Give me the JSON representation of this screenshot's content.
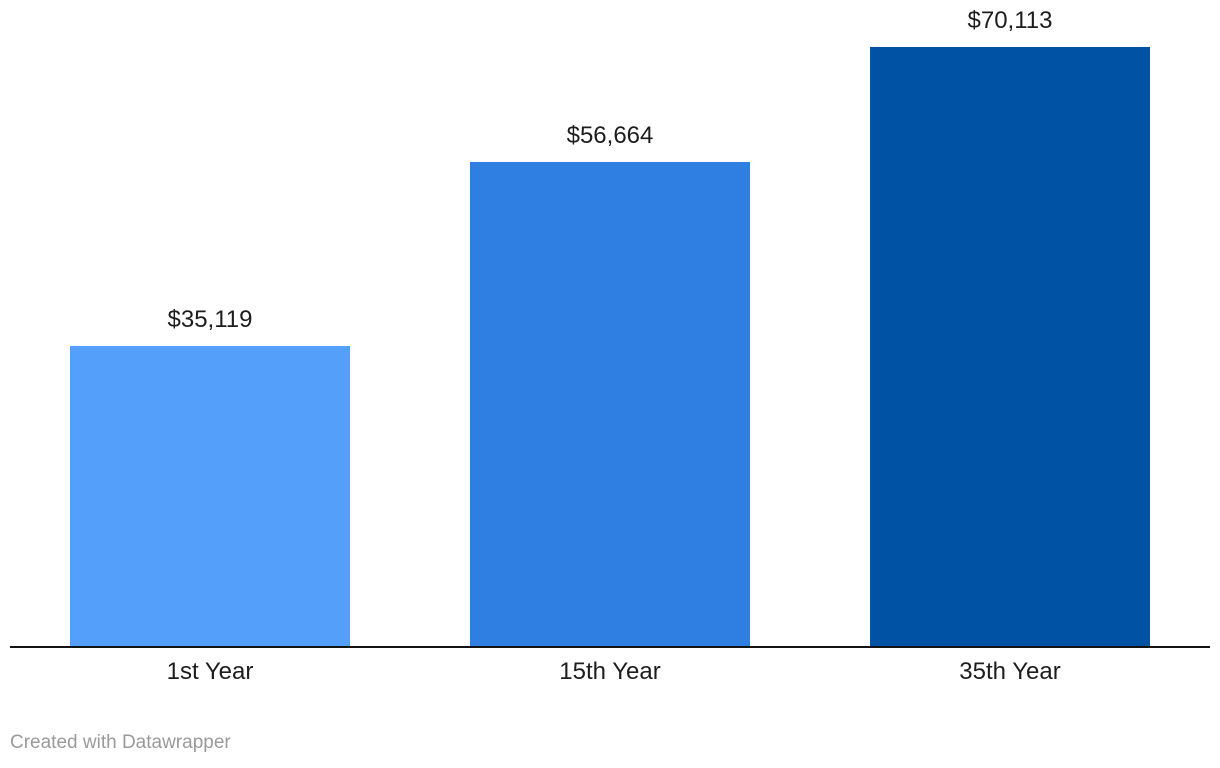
{
  "chart_data": {
    "type": "bar",
    "title": "",
    "xlabel": "",
    "ylabel": "",
    "categories": [
      "1st Year",
      "15th Year",
      "35th Year"
    ],
    "values": [
      35119,
      56664,
      70113
    ],
    "value_labels": [
      "$35,119",
      "$56,664",
      "$70,113"
    ],
    "colors": [
      "#549ffa",
      "#2f7fe3",
      "#0052a5"
    ],
    "ylim": [
      0,
      70113
    ],
    "grid": false,
    "legend": "none",
    "value_label_color": "#1d1d1d",
    "axis_label_color": "#1d1d1d",
    "axis_line_color": "#131313"
  },
  "footer": {
    "attribution": "Created with Datawrapper"
  }
}
